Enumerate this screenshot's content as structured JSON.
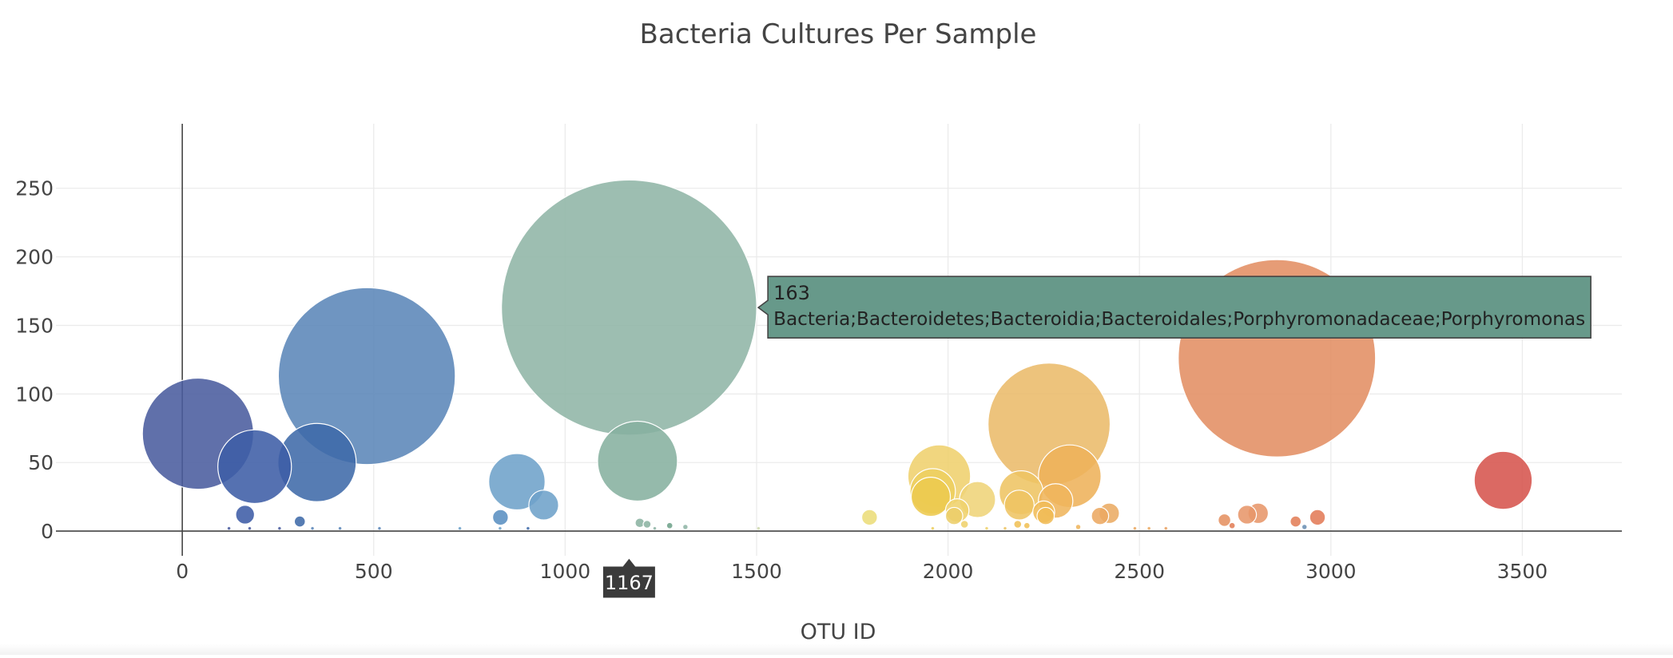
{
  "chart_data": {
    "type": "scatter",
    "title": "Bacteria Cultures Per Sample",
    "xlabel": "OTU ID",
    "ylabel": "",
    "xlim": [
      -330,
      3760
    ],
    "ylim": [
      -18,
      297
    ],
    "xticks": [
      0,
      500,
      1000,
      1500,
      2000,
      2500,
      3000,
      3500
    ],
    "yticks": [
      0,
      50,
      100,
      150,
      200,
      250
    ],
    "grid": true,
    "legend": false,
    "points": [
      {
        "x": 1167,
        "y": 163,
        "color": "#8fb5a6"
      },
      {
        "x": 2859,
        "y": 126,
        "color": "#e38e63"
      },
      {
        "x": 482,
        "y": 113,
        "color": "#5b86b8"
      },
      {
        "x": 2264,
        "y": 78,
        "color": "#ebbb6a"
      },
      {
        "x": 41,
        "y": 71,
        "color": "#4a5c9e"
      },
      {
        "x": 1189,
        "y": 51,
        "color": "#86b09f"
      },
      {
        "x": 352,
        "y": 50,
        "color": "#3f6aa8"
      },
      {
        "x": 189,
        "y": 47,
        "color": "#3d5da6"
      },
      {
        "x": 2318,
        "y": 40,
        "color": "#eeb25a"
      },
      {
        "x": 1977,
        "y": 40,
        "color": "#efd06d"
      },
      {
        "x": 3450,
        "y": 37,
        "color": "#d6544d"
      },
      {
        "x": 874,
        "y": 36,
        "color": "#6ea2c9"
      },
      {
        "x": 1960,
        "y": 29,
        "color": "#edcf60"
      },
      {
        "x": 2191,
        "y": 28,
        "color": "#eec463"
      },
      {
        "x": 1955,
        "y": 25,
        "color": "#edc94f"
      },
      {
        "x": 2077,
        "y": 23,
        "color": "#efd479"
      },
      {
        "x": 2281,
        "y": 22,
        "color": "#efb55c"
      },
      {
        "x": 944,
        "y": 19,
        "color": "#6ea2c9"
      },
      {
        "x": 2186,
        "y": 19,
        "color": "#eec463"
      },
      {
        "x": 2024,
        "y": 15,
        "color": "#efd16c"
      },
      {
        "x": 2250,
        "y": 14,
        "color": "#f0bc58"
      },
      {
        "x": 2810,
        "y": 13,
        "color": "#e7966a"
      },
      {
        "x": 2421,
        "y": 13,
        "color": "#ebab63"
      },
      {
        "x": 164,
        "y": 12,
        "color": "#3d5ca6"
      },
      {
        "x": 2781,
        "y": 12,
        "color": "#e7966a"
      },
      {
        "x": 2016,
        "y": 11,
        "color": "#ecce6a"
      },
      {
        "x": 2255,
        "y": 11,
        "color": "#f0bc58"
      },
      {
        "x": 2397,
        "y": 11,
        "color": "#eca962"
      },
      {
        "x": 1795,
        "y": 10,
        "color": "#ecdd7a"
      },
      {
        "x": 831,
        "y": 10,
        "color": "#5a8fc1"
      },
      {
        "x": 2965,
        "y": 10,
        "color": "#e37b58"
      },
      {
        "x": 2722,
        "y": 8,
        "color": "#e59161"
      },
      {
        "x": 2908,
        "y": 7,
        "color": "#e27e58"
      },
      {
        "x": 307,
        "y": 7,
        "color": "#3f6aa8"
      },
      {
        "x": 1195,
        "y": 6,
        "color": "#8bb3a2"
      },
      {
        "x": 1214,
        "y": 5,
        "color": "#8bb3a2"
      },
      {
        "x": 2182,
        "y": 5,
        "color": "#f0c057"
      },
      {
        "x": 2043,
        "y": 5,
        "color": "#efd16c"
      },
      {
        "x": 2206,
        "y": 4,
        "color": "#f0c057"
      },
      {
        "x": 2742,
        "y": 4,
        "color": "#e27e58"
      },
      {
        "x": 1273,
        "y": 4,
        "color": "#6fa38b"
      },
      {
        "x": 1314,
        "y": 3,
        "color": "#8fb5a6"
      },
      {
        "x": 2340,
        "y": 3,
        "color": "#efb55c"
      },
      {
        "x": 2931,
        "y": 3,
        "color": "#6b8fb3"
      },
      {
        "x": 903,
        "y": 2,
        "color": "#3f6aa8"
      },
      {
        "x": 122,
        "y": 2,
        "color": "#4a5c9e"
      },
      {
        "x": 176,
        "y": 2,
        "color": "#4a5c9e"
      },
      {
        "x": 254,
        "y": 2,
        "color": "#4a5c9e"
      },
      {
        "x": 340,
        "y": 2,
        "color": "#5b86b8"
      },
      {
        "x": 412,
        "y": 2,
        "color": "#5b86b8"
      },
      {
        "x": 515,
        "y": 2,
        "color": "#5b86b8"
      },
      {
        "x": 725,
        "y": 2,
        "color": "#6ea2c9"
      },
      {
        "x": 830,
        "y": 2,
        "color": "#6ea2c9"
      },
      {
        "x": 1234,
        "y": 2,
        "color": "#8fb5a6"
      },
      {
        "x": 1505,
        "y": 2,
        "color": "#cfd9b0"
      },
      {
        "x": 1960,
        "y": 2,
        "color": "#edcf60"
      },
      {
        "x": 2101,
        "y": 2,
        "color": "#efd16c"
      },
      {
        "x": 2149,
        "y": 2,
        "color": "#eec463"
      },
      {
        "x": 2488,
        "y": 2,
        "color": "#eaa862"
      },
      {
        "x": 2525,
        "y": 2,
        "color": "#eaa862"
      },
      {
        "x": 2569,
        "y": 2,
        "color": "#e9a062"
      }
    ],
    "hover": {
      "x": 1167,
      "y": 163,
      "x_label": "1167",
      "value_label": "163",
      "text": "Bacteria;Bacteroidetes;Bacteroidia;Bacteroidales;Porphyromonadaceae;Porphyromonas",
      "bg_color": "#67998a",
      "x_label_bg": "#3b3b3b"
    }
  }
}
